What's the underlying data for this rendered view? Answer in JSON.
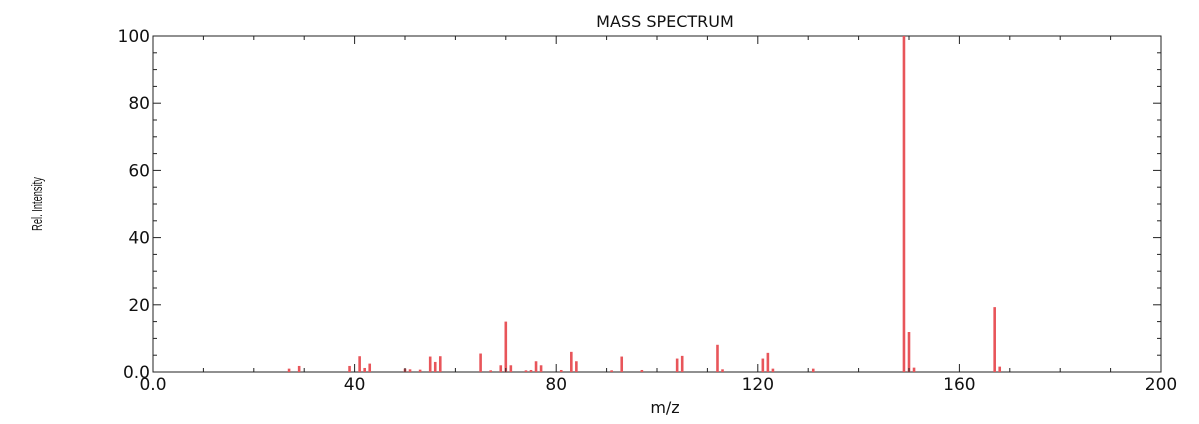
{
  "chart_data": {
    "type": "bar",
    "title": "MASS SPECTRUM",
    "xlabel": "m/z",
    "ylabel": "Rel. Intensity",
    "xlim": [
      0,
      200
    ],
    "ylim": [
      0,
      100
    ],
    "x_ticks": [
      0,
      40,
      80,
      120,
      160,
      200
    ],
    "x_tick_labels": [
      "0.0",
      "40",
      "80",
      "120",
      "160",
      "200"
    ],
    "y_ticks": [
      0,
      20,
      40,
      60,
      80,
      100
    ],
    "y_tick_labels": [
      "0.0",
      "20",
      "40",
      "60",
      "80",
      "100"
    ],
    "bar_color": "#e8555a",
    "series": [
      {
        "x": [
          27,
          29,
          39,
          41,
          42,
          43,
          50,
          51,
          53,
          55,
          56,
          57,
          65,
          67,
          69,
          70,
          71,
          74,
          75,
          76,
          77,
          81,
          83,
          84,
          91,
          93,
          97,
          104,
          105,
          112,
          113,
          121,
          122,
          123,
          131,
          149,
          150,
          151,
          167,
          168
        ],
        "y": [
          1,
          1.8,
          1.8,
          4.7,
          1.2,
          2.5,
          1,
          0.8,
          0.7,
          4.6,
          3,
          4.7,
          5.5,
          0.5,
          2,
          15,
          2,
          0.5,
          0.6,
          3.2,
          2,
          0.6,
          6,
          3.2,
          0.5,
          4.6,
          0.6,
          4,
          4.8,
          8.1,
          0.8,
          4,
          5.7,
          1,
          1,
          100,
          11.9,
          1.3,
          19.3,
          1.6
        ]
      }
    ]
  }
}
